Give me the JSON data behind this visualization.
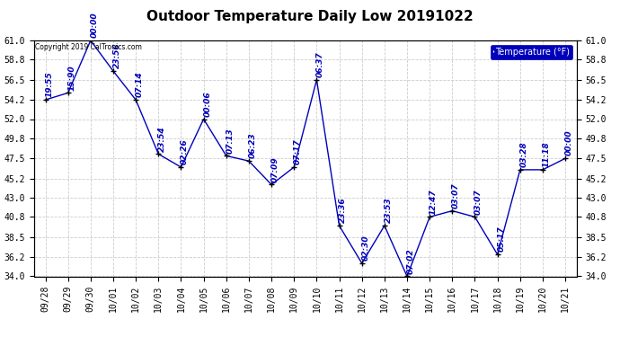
{
  "title": "Outdoor Temperature Daily Low 20191022",
  "copyright_text": "Copyright 2019 CalTronics.com",
  "legend_label": "Temperature (°F)",
  "x_labels": [
    "09/28",
    "09/29",
    "09/30",
    "10/01",
    "10/02",
    "10/03",
    "10/04",
    "10/05",
    "10/06",
    "10/07",
    "10/08",
    "10/09",
    "10/10",
    "10/11",
    "10/12",
    "10/13",
    "10/14",
    "10/15",
    "10/16",
    "10/17",
    "10/18",
    "10/19",
    "10/20",
    "10/21"
  ],
  "data_points": [
    {
      "x": 0,
      "temp": 54.2,
      "time": "19:55"
    },
    {
      "x": 1,
      "temp": 55.0,
      "time": "15:90"
    },
    {
      "x": 2,
      "temp": 61.0,
      "time": "00:00"
    },
    {
      "x": 3,
      "temp": 57.5,
      "time": "23:56"
    },
    {
      "x": 4,
      "temp": 54.2,
      "time": "07:14"
    },
    {
      "x": 5,
      "temp": 48.0,
      "time": "23:54"
    },
    {
      "x": 6,
      "temp": 46.5,
      "time": "02:26"
    },
    {
      "x": 7,
      "temp": 52.0,
      "time": "00:06"
    },
    {
      "x": 8,
      "temp": 47.8,
      "time": "07:13"
    },
    {
      "x": 9,
      "temp": 47.2,
      "time": "06:23"
    },
    {
      "x": 10,
      "temp": 44.5,
      "time": "07:09"
    },
    {
      "x": 11,
      "temp": 46.5,
      "time": "07:17"
    },
    {
      "x": 12,
      "temp": 56.5,
      "time": "06:37"
    },
    {
      "x": 13,
      "temp": 39.8,
      "time": "23:36"
    },
    {
      "x": 14,
      "temp": 35.5,
      "time": "02:30"
    },
    {
      "x": 15,
      "temp": 39.8,
      "time": "23:53"
    },
    {
      "x": 16,
      "temp": 34.0,
      "time": "07:02"
    },
    {
      "x": 17,
      "temp": 40.8,
      "time": "12:47"
    },
    {
      "x": 18,
      "temp": 41.5,
      "time": "03:07"
    },
    {
      "x": 19,
      "temp": 40.8,
      "time": "03:07"
    },
    {
      "x": 20,
      "temp": 36.5,
      "time": "05:17"
    },
    {
      "x": 21,
      "temp": 46.2,
      "time": "03:28"
    },
    {
      "x": 22,
      "temp": 46.2,
      "time": "11:18"
    },
    {
      "x": 23,
      "temp": 47.5,
      "time": "00:00"
    }
  ],
  "ylim": [
    34.0,
    61.0
  ],
  "yticks": [
    34.0,
    36.2,
    38.5,
    40.8,
    43.0,
    45.2,
    47.5,
    49.8,
    52.0,
    54.2,
    56.5,
    58.8,
    61.0
  ],
  "line_color": "#0000bb",
  "marker_color": "#000000",
  "bg_color": "#ffffff",
  "plot_bg_color": "#ffffff",
  "grid_color": "#cccccc",
  "title_fontsize": 11,
  "label_fontsize": 7,
  "annotation_fontsize": 6.5
}
